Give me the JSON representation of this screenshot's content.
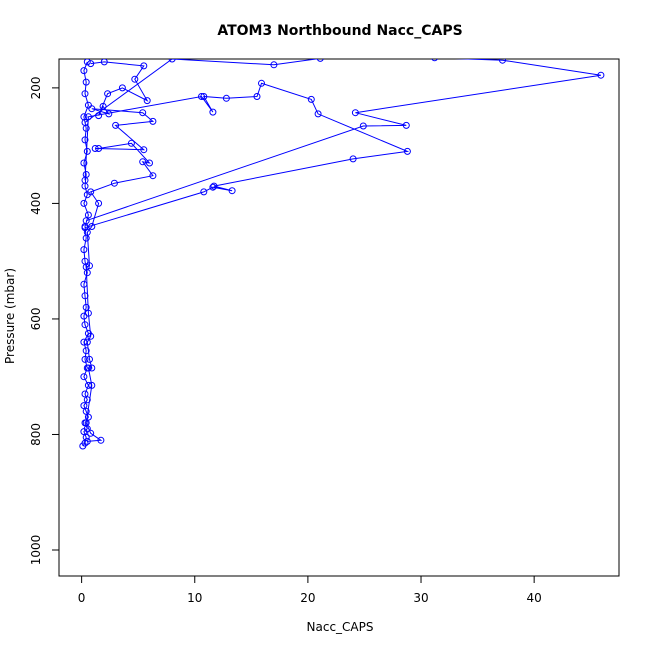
{
  "chart_data": {
    "type": "scatter",
    "title": "ATOM3 Northbound Nacc_CAPS",
    "xlabel": "Nacc_CAPS",
    "ylabel": "Pressure (mbar)",
    "xlim": [
      -2,
      47.5
    ],
    "ylim": [
      1045,
      150
    ],
    "y_reversed": true,
    "grid": false,
    "x_ticks": [
      0,
      10,
      20,
      30,
      40
    ],
    "y_ticks": [
      200,
      400,
      600,
      800,
      1000
    ],
    "color": "#0000ff",
    "marker": "open-circle",
    "connect_points": true,
    "series": [
      {
        "values": [
          [
            0.1,
            820
          ],
          [
            0.3,
            815
          ],
          [
            0.4,
            805
          ],
          [
            0.2,
            795
          ],
          [
            0.5,
            790
          ],
          [
            0.3,
            780
          ],
          [
            0.6,
            770
          ],
          [
            0.4,
            760
          ],
          [
            0.2,
            750
          ],
          [
            0.5,
            740
          ],
          [
            0.3,
            730
          ],
          [
            0.6,
            715
          ],
          [
            0.2,
            700
          ],
          [
            0.5,
            685
          ],
          [
            0.3,
            670
          ],
          [
            0.4,
            655
          ],
          [
            0.2,
            640
          ],
          [
            0.6,
            625
          ],
          [
            0.3,
            610
          ],
          [
            0.2,
            595
          ],
          [
            0.4,
            580
          ],
          [
            0.3,
            560
          ],
          [
            0.2,
            540
          ],
          [
            0.5,
            520
          ],
          [
            0.3,
            500
          ],
          [
            0.2,
            480
          ],
          [
            0.4,
            460
          ],
          [
            0.3,
            440
          ],
          [
            0.6,
            420
          ],
          [
            0.2,
            400
          ],
          [
            0.5,
            385
          ],
          [
            0.3,
            370
          ],
          [
            0.4,
            350
          ],
          [
            0.2,
            330
          ],
          [
            0.5,
            310
          ],
          [
            0.3,
            290
          ],
          [
            0.4,
            270
          ],
          [
            0.2,
            250
          ],
          [
            0.6,
            230
          ],
          [
            0.3,
            210
          ],
          [
            0.4,
            190
          ],
          [
            0.2,
            170
          ],
          [
            0.5,
            155
          ]
        ]
      },
      {
        "values": [
          [
            0.5,
            812
          ],
          [
            1.7,
            810
          ],
          [
            0.8,
            798
          ],
          [
            0.4,
            780
          ],
          [
            0.9,
            715
          ],
          [
            0.6,
            685
          ],
          [
            0.9,
            685
          ],
          [
            0.7,
            670
          ],
          [
            0.5,
            640
          ],
          [
            0.8,
            630
          ],
          [
            0.6,
            590
          ],
          [
            0.4,
            510
          ],
          [
            0.7,
            508
          ],
          [
            0.5,
            450
          ],
          [
            0.9,
            440
          ],
          [
            1.5,
            400
          ],
          [
            0.8,
            380
          ],
          [
            2.9,
            365
          ],
          [
            6.3,
            352
          ],
          [
            5.4,
            328
          ],
          [
            6.0,
            330
          ],
          [
            4.4,
            296
          ],
          [
            1.5,
            305
          ],
          [
            1.2,
            305
          ],
          [
            5.5,
            307
          ],
          [
            3.0,
            265
          ],
          [
            6.3,
            258
          ],
          [
            5.4,
            243
          ],
          [
            0.9,
            236
          ],
          [
            2.4,
            245
          ],
          [
            1.9,
            232
          ],
          [
            1.5,
            248
          ],
          [
            2.3,
            210
          ],
          [
            3.6,
            200
          ],
          [
            5.8,
            222
          ],
          [
            4.7,
            185
          ],
          [
            5.5,
            162
          ],
          [
            2.0,
            155
          ],
          [
            0.8,
            158
          ]
        ]
      },
      {
        "values": [
          [
            0.3,
            442
          ],
          [
            10.8,
            380
          ],
          [
            11.6,
            372
          ],
          [
            13.3,
            378
          ],
          [
            11.7,
            370
          ],
          [
            24.0,
            323
          ],
          [
            28.8,
            310
          ],
          [
            20.9,
            245
          ],
          [
            20.3,
            220
          ],
          [
            15.9,
            192
          ],
          [
            15.5,
            215
          ],
          [
            12.8,
            218
          ],
          [
            10.8,
            215
          ],
          [
            11.6,
            242
          ],
          [
            10.6,
            215
          ],
          [
            0.6,
            250
          ],
          [
            0.3,
            360
          ]
        ]
      },
      {
        "values": [
          [
            0.4,
            430
          ],
          [
            24.9,
            266
          ],
          [
            28.7,
            265
          ],
          [
            24.2,
            243
          ],
          [
            45.9,
            178
          ],
          [
            37.2,
            152
          ],
          [
            31.2,
            148
          ],
          [
            21.1,
            149
          ],
          [
            17.0,
            160
          ],
          [
            8.0,
            150
          ],
          [
            0.3,
            260
          ]
        ]
      }
    ]
  }
}
